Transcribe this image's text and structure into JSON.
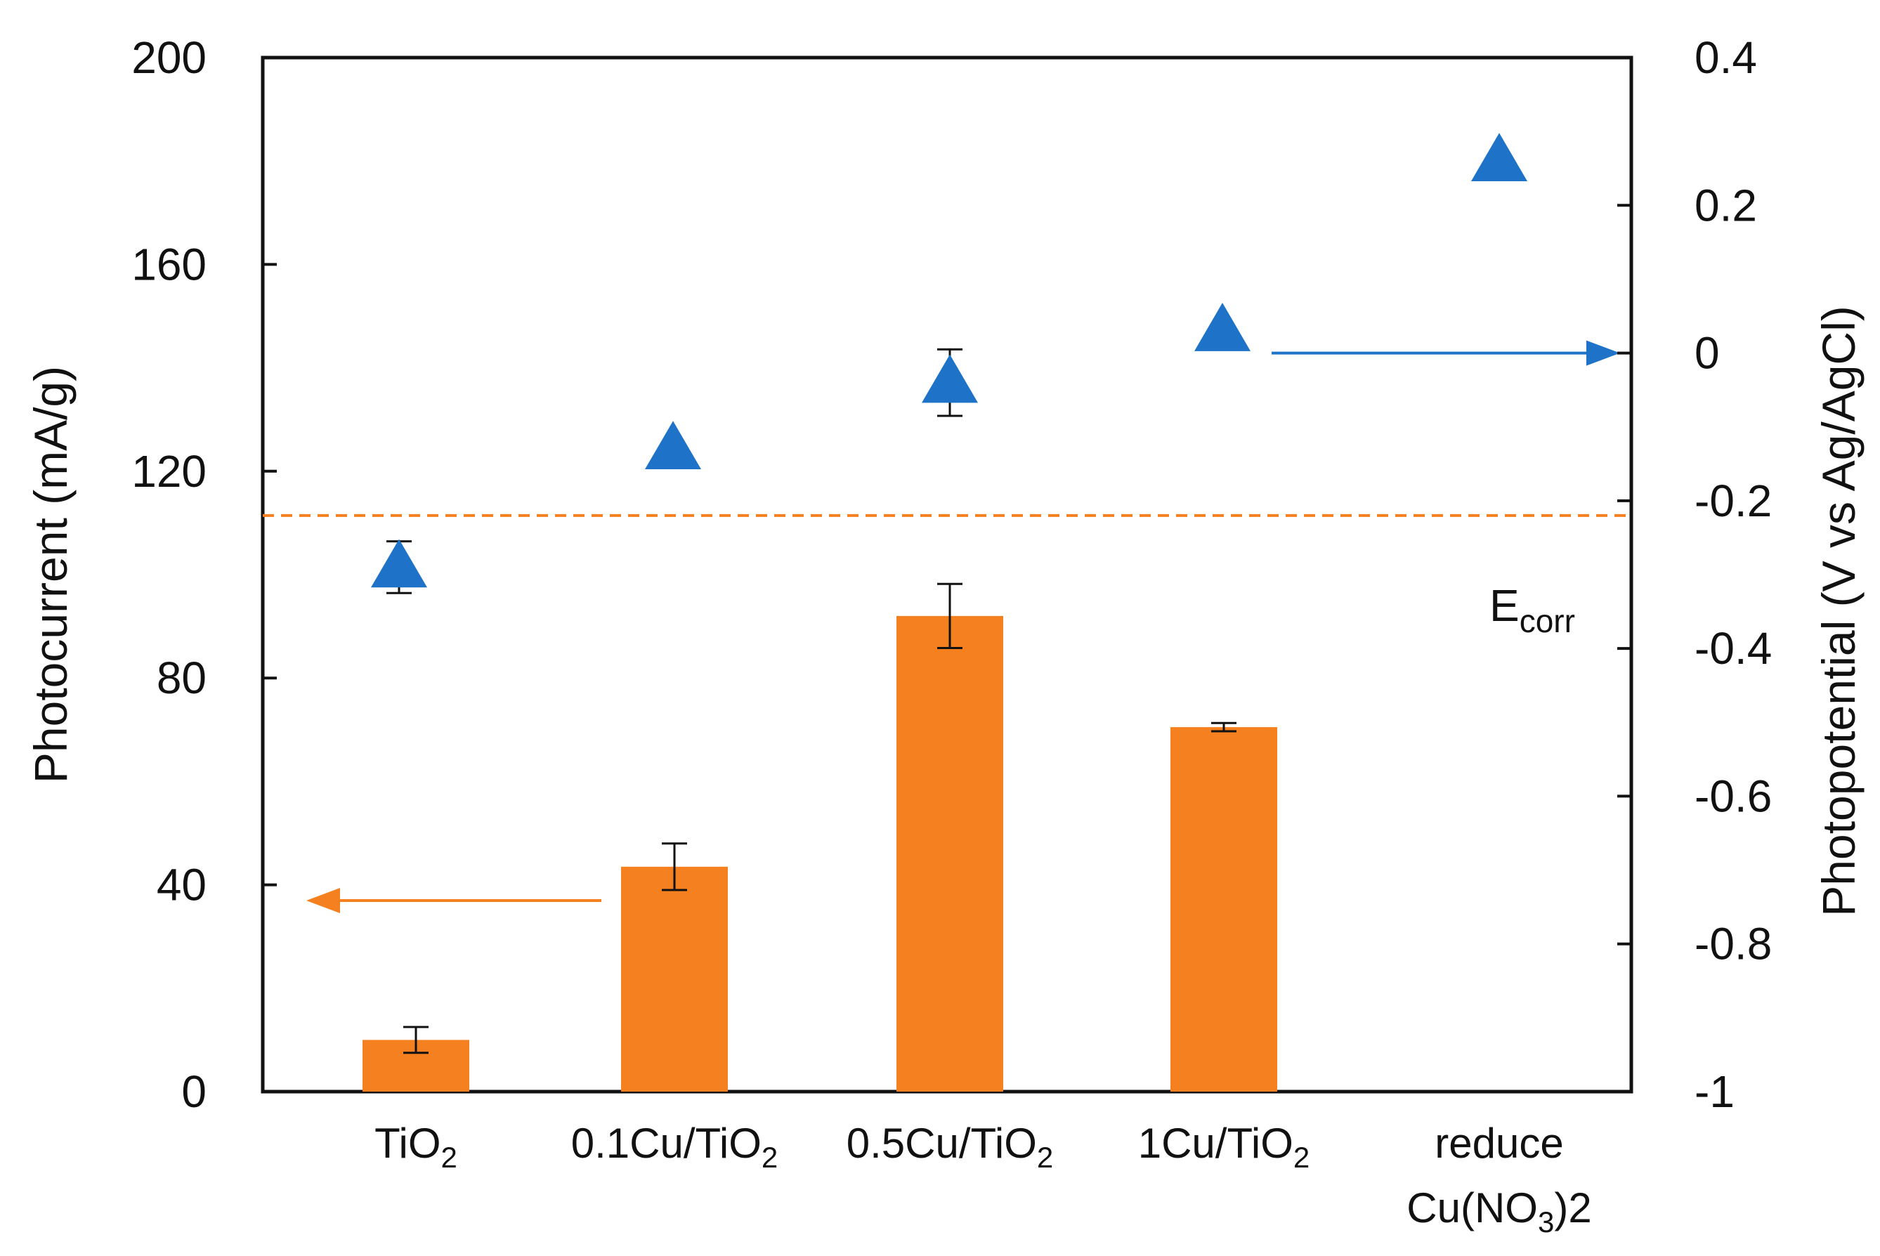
{
  "chart_data": {
    "type": "bar",
    "categories": [
      "TiO",
      "0.1Cu/TiO",
      "0.5Cu/TiO",
      "1Cu/TiO",
      "reduce"
    ],
    "category_labels": [
      {
        "lines": [
          {
            "text": "TiO",
            "sub": "2",
            "tail": ""
          }
        ]
      },
      {
        "lines": [
          {
            "text": "0.1Cu/TiO",
            "sub": "2",
            "tail": ""
          }
        ]
      },
      {
        "lines": [
          {
            "text": "0.5Cu/TiO",
            "sub": "2",
            "tail": ""
          }
        ]
      },
      {
        "lines": [
          {
            "text": "1Cu/TiO",
            "sub": "2",
            "tail": ""
          }
        ]
      },
      {
        "lines": [
          {
            "text": "reduce",
            "sub": "",
            "tail": ""
          },
          {
            "text": "Cu(NO",
            "sub": "3",
            "tail": ")2"
          }
        ]
      }
    ],
    "series": [
      {
        "name": "Photocurrent",
        "kind": "bar",
        "axis": "left",
        "color": "#f5801f",
        "values": [
          10,
          43.5,
          92,
          70.5,
          null
        ],
        "error": [
          2.5,
          4.5,
          6.2,
          0.8,
          null
        ]
      },
      {
        "name": "Photopotential",
        "kind": "marker-triangle",
        "axis": "right",
        "color": "#1e73c8",
        "values": [
          -0.29,
          -0.13,
          -0.04,
          0.03,
          0.26
        ],
        "error": [
          0.035,
          0.0,
          0.045,
          0.0,
          0.0
        ]
      }
    ],
    "y_left": {
      "label": "Photocurrent (mA/g)",
      "ylim": [
        0,
        200
      ],
      "ticks": [
        0,
        40,
        80,
        120,
        160,
        200
      ]
    },
    "y_right": {
      "label": "Photopotential (V vs Ag/AgCl)",
      "ylim": [
        -1,
        0.4
      ],
      "ticks": [
        -1,
        -0.8,
        -0.6,
        -0.4,
        -0.2,
        0,
        0.2,
        0.4
      ],
      "tick_labels": [
        "-1",
        "-0.8",
        "-0.6",
        "-0.4",
        "-0.2",
        "0",
        "0.2",
        "0.4"
      ]
    },
    "reference_line": {
      "axis": "right",
      "value": -0.22,
      "style": "dashed",
      "color": "#f5801f",
      "label": "E",
      "label_sub": "corr"
    },
    "axis_arrows": [
      {
        "series": "Photocurrent",
        "points_to": "left"
      },
      {
        "series": "Photopotential",
        "points_to": "right"
      }
    ],
    "grid": false
  }
}
